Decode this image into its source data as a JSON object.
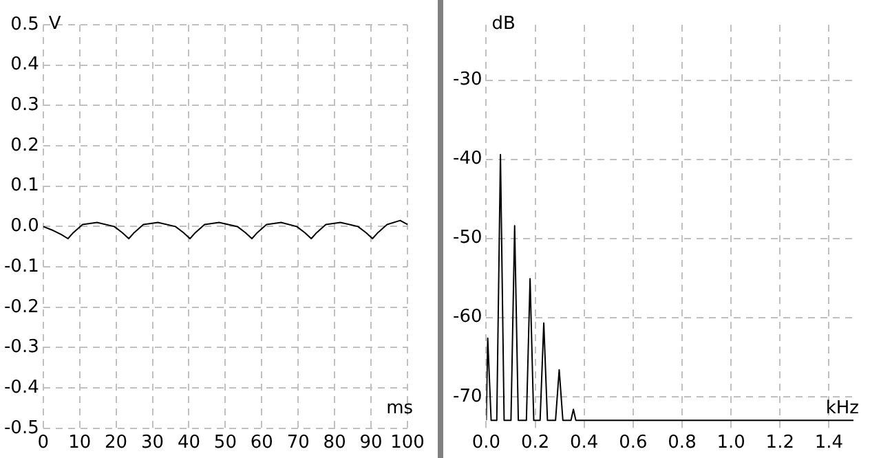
{
  "chart_data": [
    {
      "type": "line",
      "xlabel": "ms",
      "ylabel": "V",
      "xlim": [
        0,
        100
      ],
      "xticks": [
        0,
        10,
        20,
        30,
        40,
        50,
        60,
        70,
        80,
        90,
        100
      ],
      "ylim": [
        -0.5,
        0.5
      ],
      "yticks": [
        {
          "value": -0.5,
          "label": "-0.5"
        },
        {
          "value": -0.4,
          "label": "-0.4"
        },
        {
          "value": -0.3,
          "label": "-0.3"
        },
        {
          "value": -0.2,
          "label": "-0.2"
        },
        {
          "value": -0.1,
          "label": "-0.1"
        },
        {
          "value": 0,
          "label": "0.0"
        },
        {
          "value": 0.1,
          "label": "0.1"
        },
        {
          "value": 0.2,
          "label": "0.2"
        },
        {
          "value": 0.3,
          "label": "0.3"
        },
        {
          "value": 0.4,
          "label": "0.4"
        },
        {
          "value": 0.5,
          "label": "0.5"
        }
      ],
      "grid": true,
      "legend": false,
      "marker": "none",
      "line_style": "solid",
      "x": [
        0,
        2.8,
        5,
        6.8,
        8.3,
        10.8,
        14.8,
        19.5,
        21.7,
        23.5,
        25,
        27.5,
        31.5,
        36.3,
        38.5,
        40.3,
        41.8,
        44.3,
        48.3,
        53.3,
        55.5,
        57.3,
        58.8,
        61.3,
        65.3,
        69.6,
        71.8,
        73.6,
        75.1,
        77.6,
        81.6,
        86.4,
        88.6,
        90.4,
        91.9,
        94.4,
        98,
        100
      ],
      "series": [
        {
          "color": "#000000",
          "values": [
            0.0,
            -0.01,
            -0.02,
            -0.03,
            -0.015,
            0.005,
            0.01,
            0.0,
            -0.015,
            -0.03,
            -0.015,
            0.005,
            0.01,
            0.0,
            -0.015,
            -0.03,
            -0.015,
            0.005,
            0.01,
            0.0,
            -0.015,
            -0.03,
            -0.015,
            0.005,
            0.01,
            0.0,
            -0.015,
            -0.03,
            -0.015,
            0.005,
            0.01,
            0.0,
            -0.015,
            -0.03,
            -0.015,
            0.005,
            0.015,
            0.005
          ]
        }
      ]
    },
    {
      "type": "line",
      "xlabel": "kHz",
      "ylabel": "dB",
      "xlim": [
        0,
        1.5
      ],
      "xticks": [
        {
          "value": 0,
          "label": "0.0"
        },
        {
          "value": 0.2,
          "label": "0.2"
        },
        {
          "value": 0.4,
          "label": "0.4"
        },
        {
          "value": 0.6,
          "label": "0.6"
        },
        {
          "value": 0.8,
          "label": "0.8"
        },
        {
          "value": 1.0,
          "label": "1.0"
        },
        {
          "value": 1.2,
          "label": "1.2"
        },
        {
          "value": 1.4,
          "label": "1.4"
        }
      ],
      "ylim": [
        -74,
        -23
      ],
      "yticks": [
        -70,
        -60,
        -50,
        -40,
        -30
      ],
      "grid": true,
      "legend": false,
      "marker": "none",
      "line_style": "solid",
      "x": [
        0,
        0.006,
        0.02,
        0.043,
        0.058,
        0.073,
        0.101,
        0.116,
        0.131,
        0.164,
        0.179,
        0.194,
        0.22,
        0.235,
        0.25,
        0.283,
        0.298,
        0.313,
        0.346,
        0.356,
        0.366,
        1.5
      ],
      "series": [
        {
          "color": "#000000",
          "values": [
            -73,
            -62.6,
            -73,
            -73,
            -39.4,
            -73,
            -73,
            -48.4,
            -73,
            -73,
            -55.1,
            -73,
            -73,
            -60.7,
            -73,
            -73,
            -66.6,
            -73,
            -73,
            -71.6,
            -73,
            -73
          ]
        }
      ]
    }
  ]
}
